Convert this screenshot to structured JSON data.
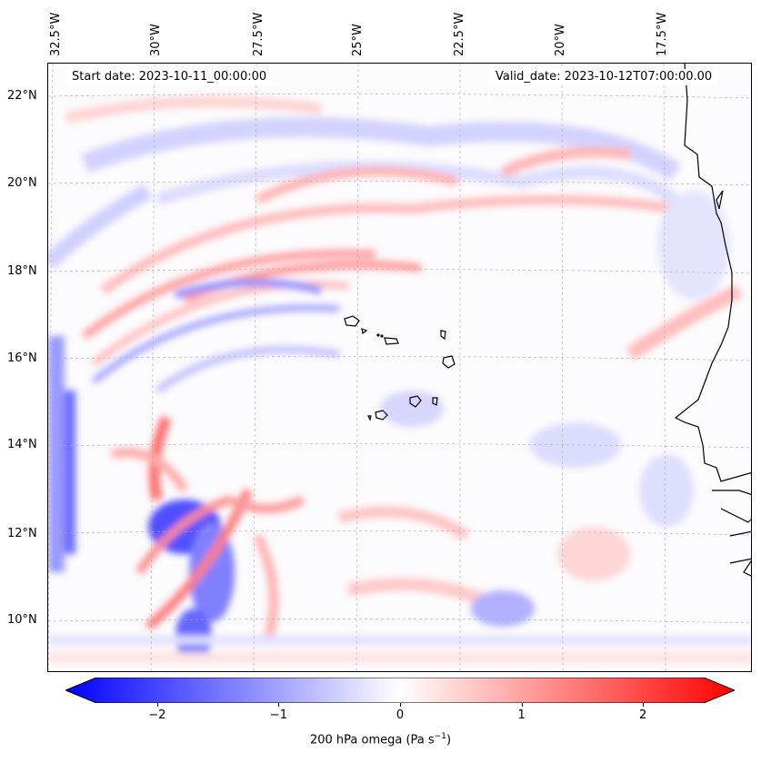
{
  "map": {
    "start_date": "Start date: 2023-10-11_00:00:00",
    "valid_date": "Valid_date: 2023-10-12T07:00:00.00",
    "lon_labels": [
      "32.5°W",
      "30°W",
      "27.5°W",
      "25°W",
      "22.5°W",
      "20°W",
      "17.5°W"
    ],
    "lat_labels": [
      "22°N",
      "20°N",
      "18°N",
      "16°N",
      "14°N",
      "12°N",
      "10°N"
    ],
    "gridlines": true,
    "coastlines": true,
    "colormap": "bwr",
    "field": "200 hPa vertical velocity (omega)"
  },
  "colorbar": {
    "label_prefix": "200 hPa omega (Pa s",
    "label_exp": "−1",
    "label_suffix": ")",
    "ticks": [
      "−2",
      "−1",
      "0",
      "1",
      "2"
    ],
    "tick_values": [
      -2,
      -1,
      0,
      1,
      2
    ],
    "range": [
      -2.6,
      2.6
    ],
    "extend": "both",
    "color_low": "#0000ff",
    "color_mid": "#ffffff",
    "color_high": "#ff0000"
  }
}
